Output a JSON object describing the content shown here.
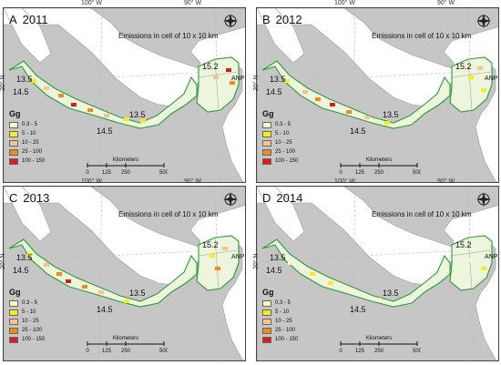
{
  "axis": {
    "lon_left": "100° W",
    "lon_right": "90° W",
    "lat": "20° N"
  },
  "panels": [
    {
      "letter": "A",
      "year": "2011",
      "title": "Emissions in cell of 10 x 10 km",
      "labels": [
        "13.5",
        "14.5",
        "13.5",
        "14.5",
        "15.2",
        "ANP"
      ]
    },
    {
      "letter": "B",
      "year": "2012",
      "title": "Emissions in cell of 10 x 10 km",
      "labels": [
        "13.5",
        "14.5",
        "13.5",
        "14.5",
        "15.2",
        "ANP"
      ]
    },
    {
      "letter": "C",
      "year": "2013",
      "title": "Emissions in cell of 10 x 10 km",
      "labels": [
        "13.5",
        "14.5",
        "13.5",
        "14.5",
        "15.2",
        "ANP"
      ]
    },
    {
      "letter": "D",
      "year": "2014",
      "title": "Emissions in cell of 10 x 10 km",
      "labels": [
        "13.5",
        "14.5",
        "13.5",
        "14.5",
        "15.2",
        "ANP"
      ]
    }
  ],
  "legend": {
    "unit": "Gg",
    "classes": [
      {
        "label": "0.3 - 5",
        "color": "#fdf7c4"
      },
      {
        "label": "5 - 10",
        "color": "#f3ee1e"
      },
      {
        "label": "10 - 25",
        "color": "#f8c48d"
      },
      {
        "label": "25 - 100",
        "color": "#f08a19"
      },
      {
        "label": "100 - 150",
        "color": "#dd1b1b"
      }
    ]
  },
  "scalebar": {
    "title": "Kilometers",
    "ticks": [
      "0",
      "125",
      "250",
      "500"
    ]
  },
  "icons": {
    "compass": "north-arrow-icon"
  }
}
